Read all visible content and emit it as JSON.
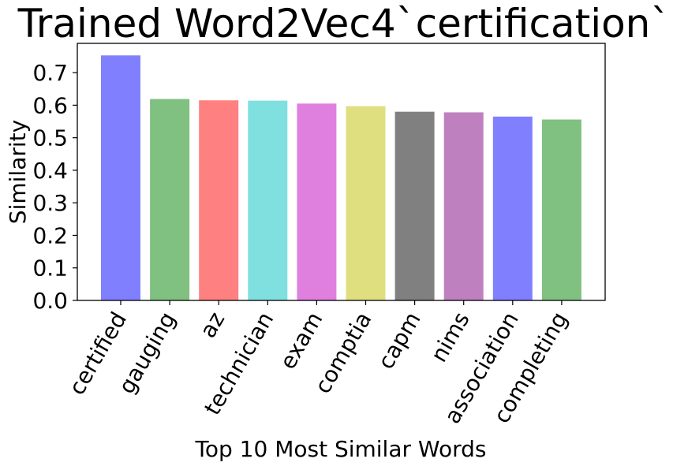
{
  "chart_data": {
    "type": "bar",
    "title": "Trained Word2Vec4`certification`",
    "xlabel": "Top 10 Most Similar Words",
    "ylabel": "Similarity",
    "categories": [
      "certified",
      "gauging",
      "az",
      "technician",
      "exam",
      "comptia",
      "capm",
      "nims",
      "association",
      "completing"
    ],
    "values": [
      0.753,
      0.619,
      0.615,
      0.614,
      0.605,
      0.597,
      0.58,
      0.578,
      0.565,
      0.556
    ],
    "colors": [
      "#8080ff",
      "#80c080",
      "#ff8080",
      "#80dfdf",
      "#df80df",
      "#dfdf80",
      "#808080",
      "#bf80bf",
      "#8080ff",
      "#80c080"
    ],
    "ylim": [
      0,
      0.79
    ],
    "yticks": [
      "0.0",
      "0.1",
      "0.2",
      "0.3",
      "0.4",
      "0.5",
      "0.6",
      "0.7"
    ],
    "grid": false,
    "legend": "none"
  }
}
